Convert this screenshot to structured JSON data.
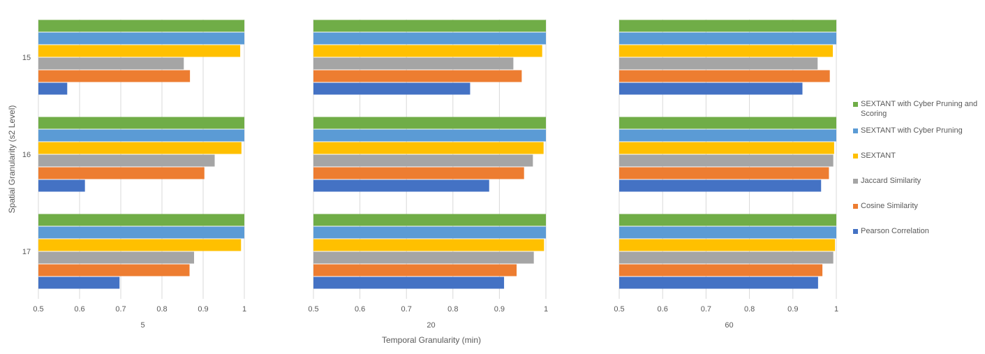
{
  "chart_data": {
    "type": "bar",
    "orientation": "horizontal",
    "xlabel": "Temporal Granularity (min)",
    "ylabel": "Spatial Granularity (s2 Level)",
    "categories": [
      "15",
      "16",
      "17"
    ],
    "xlim": [
      0.5,
      1
    ],
    "xticks": [
      "0.5",
      "0.6",
      "0.7",
      "0.8",
      "0.9",
      "1"
    ],
    "grid": true,
    "legend_position": "right",
    "series": [
      {
        "name": "SEXTANT with Cyber Pruning and Scoring",
        "color": "#70ad47"
      },
      {
        "name": "SEXTANT with Cyber Pruning",
        "color": "#5b9bd5"
      },
      {
        "name": "SEXTANT",
        "color": "#ffc000"
      },
      {
        "name": "Jaccard Similarity",
        "color": "#a5a5a5"
      },
      {
        "name": "Cosine Similarity",
        "color": "#ed7d31"
      },
      {
        "name": "Pearson Correlation",
        "color": "#4472c4"
      }
    ],
    "panels": [
      {
        "label": "5",
        "values": {
          "15": [
            1.0,
            1.0,
            0.99,
            0.853,
            0.868,
            0.57
          ],
          "16": [
            1.0,
            1.0,
            0.993,
            0.928,
            0.903,
            0.613
          ],
          "17": [
            1.0,
            1.0,
            0.992,
            0.878,
            0.867,
            0.697
          ]
        }
      },
      {
        "label": "20",
        "values": {
          "15": [
            1.0,
            1.0,
            0.992,
            0.93,
            0.948,
            0.837
          ],
          "16": [
            1.0,
            1.0,
            0.995,
            0.972,
            0.953,
            0.878
          ],
          "17": [
            1.0,
            1.0,
            0.996,
            0.974,
            0.937,
            0.91
          ]
        }
      },
      {
        "label": "60",
        "values": {
          "15": [
            1.0,
            1.0,
            0.992,
            0.957,
            0.985,
            0.922
          ],
          "16": [
            1.0,
            1.0,
            0.995,
            0.993,
            0.983,
            0.965
          ],
          "17": [
            1.0,
            1.0,
            0.997,
            0.993,
            0.968,
            0.958
          ]
        }
      }
    ]
  }
}
